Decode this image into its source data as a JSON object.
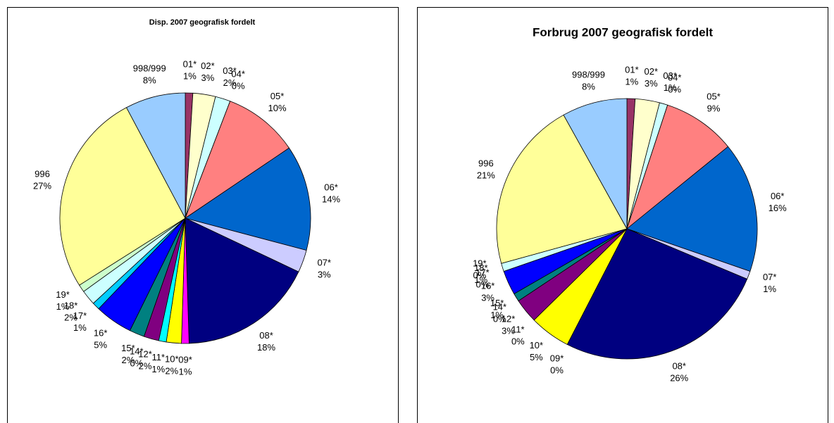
{
  "chart_data": [
    {
      "type": "pie",
      "title": "Disp. 2007 geografisk fordelt",
      "categories": [
        "01*",
        "02*",
        "03*",
        "04*",
        "05*",
        "06*",
        "07*",
        "08*",
        "09*",
        "10*",
        "11*",
        "12*",
        "14*",
        "15*",
        "16*",
        "17*",
        "18*",
        "19*",
        "996",
        "998/999"
      ],
      "values": [
        1,
        3,
        2,
        0,
        10,
        14,
        3,
        18,
        1,
        2,
        1,
        2,
        0,
        2,
        5,
        1,
        2,
        1,
        27,
        8
      ],
      "value_labels": [
        "1%",
        "3%",
        "2%",
        "0%",
        "10%",
        "14%",
        "3%",
        "18%",
        "1%",
        "2%",
        "1%",
        "2%",
        "0%",
        "2%",
        "5%",
        "1%",
        "2%",
        "1%",
        "27%",
        "8%"
      ],
      "colors": [
        "#993366",
        "#ffffcc",
        "#ccffff",
        "#660066",
        "#ff8080",
        "#0066cc",
        "#ccccff",
        "#000080",
        "#ff00ff",
        "#ffff00",
        "#00ffff",
        "#800080",
        "#800000",
        "#008080",
        "#0000ff",
        "#00ccff",
        "#ccffff",
        "#ccffcc",
        "#ffff99",
        "#99ccff"
      ]
    },
    {
      "type": "pie",
      "title": "Forbrug 2007 geografisk fordelt",
      "categories": [
        "01*",
        "02*",
        "03*",
        "04*",
        "05*",
        "06*",
        "07*",
        "08*",
        "09*",
        "10*",
        "11*",
        "12*",
        "14*",
        "15*",
        "16*",
        "17*",
        "18*",
        "19*",
        "996",
        "998/999"
      ],
      "values": [
        1,
        3,
        1,
        0,
        9,
        16,
        1,
        26,
        0,
        5,
        0,
        3,
        0,
        1,
        3,
        0,
        1,
        0,
        21,
        8
      ],
      "value_labels": [
        "1%",
        "3%",
        "1%",
        "0%",
        "9%",
        "16%",
        "1%",
        "26%",
        "0%",
        "5%",
        "0%",
        "3%",
        "0%",
        "1%",
        "3%",
        "0%",
        "1%",
        "0%",
        "21%",
        "8%"
      ],
      "colors": [
        "#993366",
        "#ffffcc",
        "#ccffff",
        "#660066",
        "#ff8080",
        "#0066cc",
        "#ccccff",
        "#000080",
        "#ff00ff",
        "#ffff00",
        "#00ffff",
        "#800080",
        "#800000",
        "#008080",
        "#0000ff",
        "#00ccff",
        "#ccffff",
        "#ccffcc",
        "#ffff99",
        "#99ccff"
      ]
    }
  ]
}
